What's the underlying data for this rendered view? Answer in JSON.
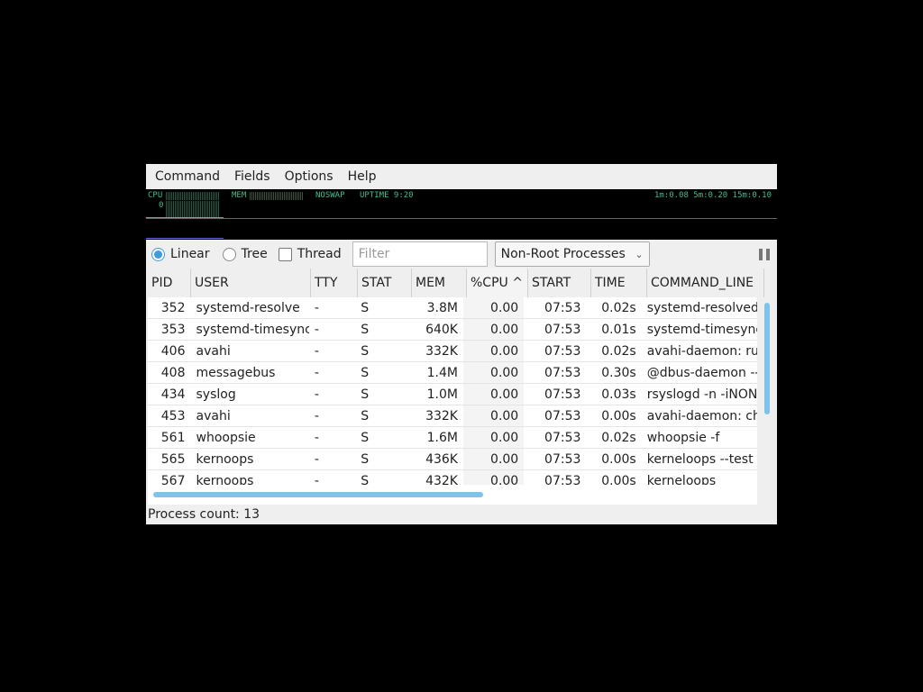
{
  "menu": [
    "Command",
    "Fields",
    "Options",
    "Help"
  ],
  "graph": {
    "cpu_label": "CPU",
    "cpu_value": "0",
    "mem_label": "MEM",
    "swap": "NOSWAP",
    "uptime": "UPTIME 9:20",
    "load": "1m:0.08 5m:0.20 15m:0.10"
  },
  "toolbar": {
    "linear": "Linear",
    "tree": "Tree",
    "thread": "Thread",
    "view_mode": "Linear",
    "thread_checked": false,
    "filter_placeholder": "Filter",
    "filter_value": "",
    "process_filter": "Non-Root Processes"
  },
  "columns": [
    "PID",
    "USER",
    "TTY",
    "STAT",
    "MEM",
    "%CPU ^",
    "START",
    "TIME",
    "COMMAND_LINE"
  ],
  "sort_column": "%CPU",
  "rows": [
    [
      "352",
      "systemd-resolve",
      "-",
      "S",
      "3.8M",
      "0.00",
      "07:53",
      "0.02s",
      "systemd-resolved"
    ],
    [
      "353",
      "systemd-timesync",
      "-",
      "S",
      "640K",
      "0.00",
      "07:53",
      "0.01s",
      "systemd-timesyncd"
    ],
    [
      "406",
      "avahi",
      "-",
      "S",
      "332K",
      "0.00",
      "07:53",
      "0.02s",
      "avahi-daemon: ru"
    ],
    [
      "408",
      "messagebus",
      "-",
      "S",
      "1.4M",
      "0.00",
      "07:53",
      "0.30s",
      "@dbus-daemon --"
    ],
    [
      "434",
      "syslog",
      "-",
      "S",
      "1.0M",
      "0.00",
      "07:53",
      "0.03s",
      "rsyslogd -n -iNON"
    ],
    [
      "453",
      "avahi",
      "-",
      "S",
      "332K",
      "0.00",
      "07:53",
      "0.00s",
      "avahi-daemon: ch"
    ],
    [
      "561",
      "whoopsie",
      "-",
      "S",
      "1.6M",
      "0.00",
      "07:53",
      "0.02s",
      "whoopsie -f"
    ],
    [
      "565",
      "kernoops",
      "-",
      "S",
      "436K",
      "0.00",
      "07:53",
      "0.00s",
      "kerneloops --test"
    ],
    [
      "567",
      "kernoops",
      "-",
      "S",
      "432K",
      "0.00",
      "07:53",
      "0.00s",
      "kerneloops"
    ]
  ],
  "status": "Process count: 13",
  "colors": {
    "accent": "#3d9be0",
    "scrollbar": "#7ec4ea",
    "graph_text": "#3fbf8f"
  }
}
